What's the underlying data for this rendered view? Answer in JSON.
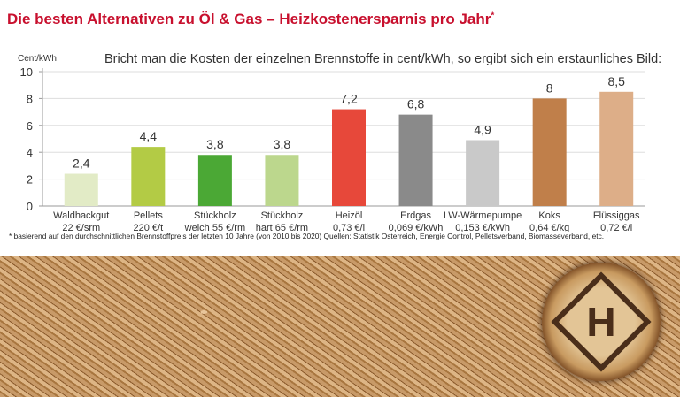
{
  "chart_data": {
    "type": "bar",
    "title": "Die besten Alternativen zu Öl & Gas – Heizkostenersparnis pro Jahr",
    "title_marker": "*",
    "subtitle": "Bricht man die Kosten der einzelnen Brennstoffe in cent/kWh, so ergibt sich ein erstaunliches Bild:",
    "ylabel": "Cent/kWh",
    "ylim": [
      0,
      10
    ],
    "yticks": [
      "0",
      "2",
      "4",
      "6",
      "8",
      "10"
    ],
    "grid": true,
    "categories": [
      {
        "name": "Waldhackgut",
        "price": "22 €/srm"
      },
      {
        "name": "Pellets",
        "price": "220 €/t"
      },
      {
        "name": "Stückholz",
        "price": "weich 55 €/rm"
      },
      {
        "name": "Stückholz",
        "price": "hart 65 €/rm"
      },
      {
        "name": "Heizöl",
        "price": "0,73 €/l"
      },
      {
        "name": "Erdgas",
        "price": "0,069 €/kWh"
      },
      {
        "name": "LW-Wärmepumpe",
        "price": "0,153 €/kWh"
      },
      {
        "name": "Koks",
        "price": "0,64 €/kg"
      },
      {
        "name": "Flüssiggas",
        "price": "0,72 €/l"
      }
    ],
    "values": [
      2.4,
      4.4,
      3.8,
      3.8,
      7.2,
      6.8,
      4.9,
      8,
      8.5
    ],
    "value_labels": [
      "2,4",
      "4,4",
      "3,8",
      "3,8",
      "7,2",
      "6,8",
      "4,9",
      "8",
      "8,5"
    ],
    "colors": [
      "#e2ebc6",
      "#b3cb45",
      "#4ba835",
      "#bcd78d",
      "#e7483a",
      "#8a8a8a",
      "#c9c9c9",
      "#c07f4a",
      "#ddae88"
    ]
  },
  "footnote": "*  basierend auf den durchschnittlichen Brennstoffpreis der letzten 10 Jahre (von 2010 bis 2020) Quellen: Statistik Österreich, Energie Control, Pelletsverband, Biomasseverband, etc.",
  "logo_text": "H"
}
